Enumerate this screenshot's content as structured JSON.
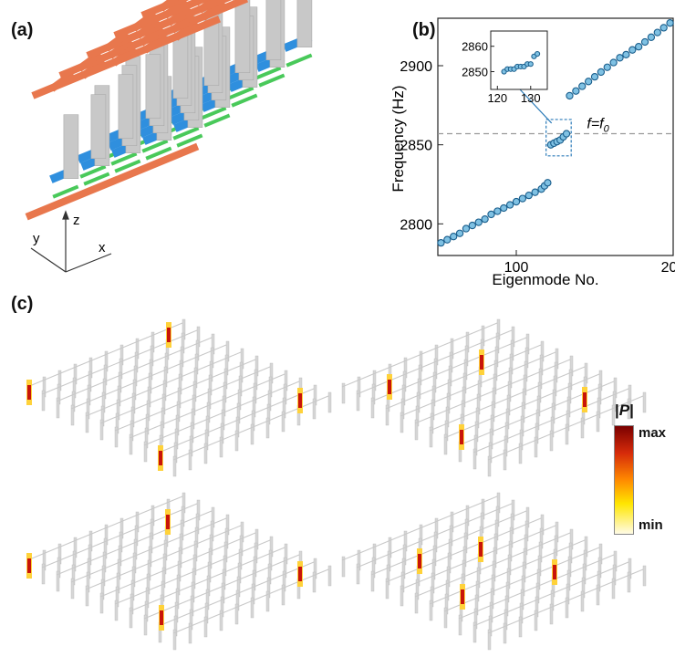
{
  "panels": {
    "a": {
      "label": "(a)",
      "axes": {
        "x": "x",
        "y": "y",
        "z": "z"
      }
    },
    "b": {
      "label": "(b)"
    },
    "c": {
      "label": "(c)",
      "colorbar": {
        "title": "|P|",
        "max": "max",
        "min": "min"
      }
    }
  },
  "colors": {
    "bar_top": "#e8774d",
    "bar_mid": "#2f8fde",
    "bar_low": "#49c95a",
    "pillar": "#c8c8c8",
    "marker_edge": "#1a5e8c",
    "marker_fill": "#7fc1e3",
    "fline": "#999999"
  },
  "chart_data": {
    "type": "scatter",
    "xlabel": "Eigenmode No.",
    "ylabel": "Frequency (Hz)",
    "xlim": [
      50,
      200
    ],
    "ylim": [
      2780,
      2930
    ],
    "xticks": [
      100,
      200
    ],
    "yticks": [
      2800,
      2850,
      2900
    ],
    "grid": false,
    "series": [
      {
        "x": [
          52,
          56,
          60,
          64,
          68,
          72,
          76,
          80,
          84,
          88,
          92,
          96,
          100,
          104,
          108,
          112,
          116,
          118,
          120
        ],
        "y": [
          2788,
          2790,
          2792,
          2794,
          2797,
          2799,
          2801,
          2803,
          2806,
          2808,
          2810,
          2812,
          2814,
          2816,
          2818,
          2820,
          2822,
          2824,
          2826
        ]
      },
      {
        "x": [
          122,
          124,
          126,
          128,
          130,
          132
        ],
        "y": [
          2850,
          2851,
          2852,
          2853,
          2855,
          2857
        ]
      },
      {
        "x": [
          134,
          138,
          142,
          146,
          150,
          154,
          158,
          162,
          166,
          170,
          174,
          178,
          182,
          186,
          190,
          194,
          198
        ],
        "y": [
          2881,
          2884,
          2887,
          2890,
          2893,
          2896,
          2899,
          2902,
          2905,
          2907,
          2910,
          2912,
          2915,
          2918,
          2921,
          2924,
          2927
        ]
      }
    ],
    "reference_line": {
      "y": 2857,
      "label": "f=f0"
    },
    "inset": {
      "xlim": [
        118,
        135
      ],
      "ylim": [
        2843,
        2866
      ],
      "xticks": [
        120,
        130
      ],
      "yticks": [
        2850,
        2860
      ],
      "x": [
        122,
        123,
        124,
        125,
        126,
        127,
        128,
        129,
        130,
        131,
        132
      ],
      "y": [
        2850,
        2851,
        2851,
        2851,
        2852,
        2852,
        2852,
        2853,
        2853,
        2856,
        2857
      ]
    }
  }
}
